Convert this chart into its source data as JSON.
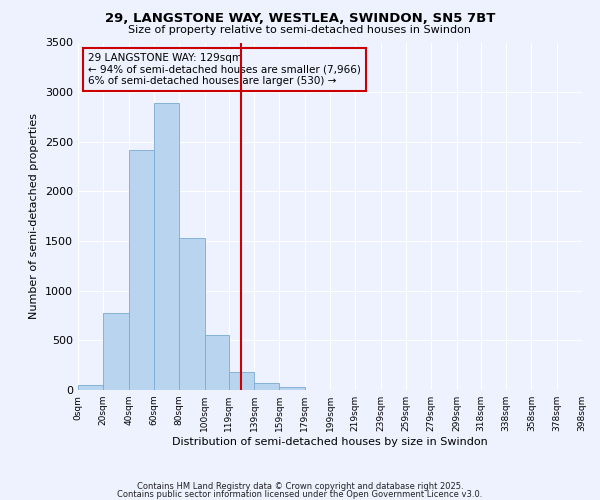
{
  "title": "29, LANGSTONE WAY, WESTLEA, SWINDON, SN5 7BT",
  "subtitle": "Size of property relative to semi-detached houses in Swindon",
  "xlabel": "Distribution of semi-detached houses by size in Swindon",
  "ylabel": "Number of semi-detached properties",
  "bar_edges": [
    0,
    20,
    40,
    60,
    80,
    100,
    119,
    139,
    159,
    179,
    199,
    219,
    239,
    259,
    279,
    299,
    318,
    338,
    358,
    378,
    398
  ],
  "bar_heights": [
    50,
    780,
    2420,
    2890,
    1530,
    550,
    185,
    75,
    30,
    0,
    0,
    0,
    0,
    0,
    0,
    0,
    0,
    0,
    0,
    0
  ],
  "bar_color": "#b8d4ee",
  "bar_edge_color": "#7aaad4",
  "vline_x": 129,
  "vline_color": "#cc0000",
  "annotation_title": "29 LANGSTONE WAY: 129sqm",
  "annotation_line1": "← 94% of semi-detached houses are smaller (7,966)",
  "annotation_line2": "6% of semi-detached houses are larger (530) →",
  "annotation_box_color": "#cc0000",
  "ylim": [
    0,
    3500
  ],
  "yticks": [
    0,
    500,
    1000,
    1500,
    2000,
    2500,
    3000,
    3500
  ],
  "xtick_labels": [
    "0sqm",
    "20sqm",
    "40sqm",
    "60sqm",
    "80sqm",
    "100sqm",
    "119sqm",
    "139sqm",
    "159sqm",
    "179sqm",
    "199sqm",
    "219sqm",
    "239sqm",
    "259sqm",
    "279sqm",
    "299sqm",
    "318sqm",
    "338sqm",
    "358sqm",
    "378sqm",
    "398sqm"
  ],
  "bg_color": "#eef2ff",
  "grid_color": "#ffffff",
  "footnote1": "Contains HM Land Registry data © Crown copyright and database right 2025.",
  "footnote2": "Contains public sector information licensed under the Open Government Licence v3.0."
}
